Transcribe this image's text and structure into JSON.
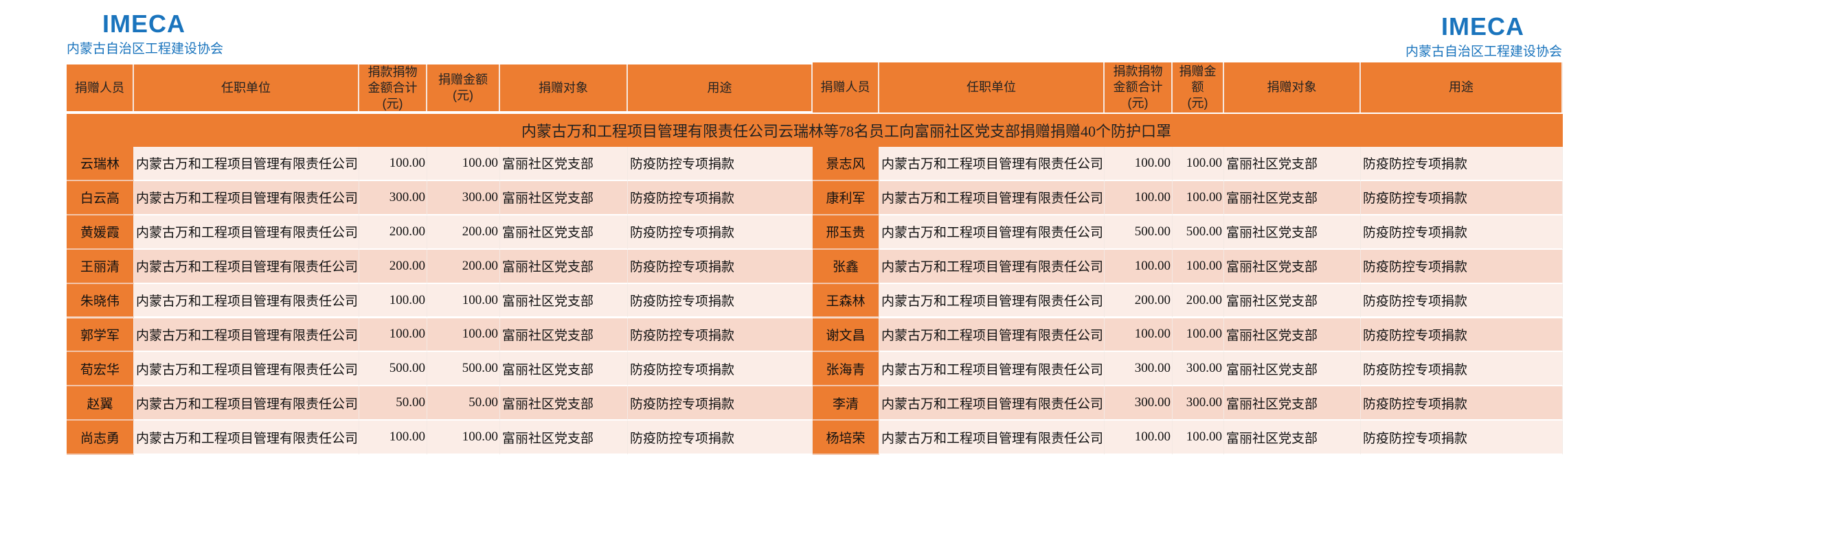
{
  "logo_left": {
    "brand": "IMECA",
    "org": "内蒙古自治区工程建设协会"
  },
  "logo_right": {
    "brand": "IMECA",
    "org": "内蒙古自治区工程建设协会"
  },
  "headers_left": [
    "捐赠人员",
    "任职单位",
    "捐款捐物\n金额合计\n(元)",
    "捐赠金额\n(元)",
    "捐赠对象",
    "用途"
  ],
  "headers_right": [
    "捐赠人员",
    "任职单位",
    "捐款捐物\n金额合计\n(元)",
    "捐赠金\n额\n(元)",
    "捐赠对象",
    "用途"
  ],
  "banner": "内蒙古万和工程项目管理有限责任公司云瑞林等78名员工向富丽社区党支部捐赠捐赠40个防护口罩",
  "colors": {
    "header": "#ed7d31",
    "row_light": "#fbede7",
    "row_dark": "#f7d8cb",
    "logo": "#1a74bd"
  },
  "rows_left": [
    {
      "name": "云瑞林",
      "unit": "内蒙古万和工程项目管理有限责任公司",
      "total": "100.00",
      "amount": "100.00",
      "target": "富丽社区党支部",
      "purpose": "防疫防控专项捐款"
    },
    {
      "name": "白云高",
      "unit": "内蒙古万和工程项目管理有限责任公司",
      "total": "300.00",
      "amount": "300.00",
      "target": "富丽社区党支部",
      "purpose": "防疫防控专项捐款"
    },
    {
      "name": "黄媛霞",
      "unit": "内蒙古万和工程项目管理有限责任公司",
      "total": "200.00",
      "amount": "200.00",
      "target": "富丽社区党支部",
      "purpose": "防疫防控专项捐款"
    },
    {
      "name": "王丽清",
      "unit": "内蒙古万和工程项目管理有限责任公司",
      "total": "200.00",
      "amount": "200.00",
      "target": "富丽社区党支部",
      "purpose": "防疫防控专项捐款"
    },
    {
      "name": "朱晓伟",
      "unit": "内蒙古万和工程项目管理有限责任公司",
      "total": "100.00",
      "amount": "100.00",
      "target": "富丽社区党支部",
      "purpose": "防疫防控专项捐款"
    },
    {
      "name": "郭学军",
      "unit": "内蒙古万和工程项目管理有限责任公司",
      "total": "100.00",
      "amount": "100.00",
      "target": "富丽社区党支部",
      "purpose": "防疫防控专项捐款"
    },
    {
      "name": "荀宏华",
      "unit": "内蒙古万和工程项目管理有限责任公司",
      "total": "500.00",
      "amount": "500.00",
      "target": "富丽社区党支部",
      "purpose": "防疫防控专项捐款"
    },
    {
      "name": "赵翼",
      "unit": "内蒙古万和工程项目管理有限责任公司",
      "total": "50.00",
      "amount": "50.00",
      "target": "富丽社区党支部",
      "purpose": "防疫防控专项捐款"
    },
    {
      "name": "尚志勇",
      "unit": "内蒙古万和工程项目管理有限责任公司",
      "total": "100.00",
      "amount": "100.00",
      "target": "富丽社区党支部",
      "purpose": "防疫防控专项捐款"
    }
  ],
  "rows_right": [
    {
      "name": "景志风",
      "unit": "内蒙古万和工程项目管理有限责任公司",
      "total": "100.00",
      "amount": "100.00",
      "target": "富丽社区党支部",
      "purpose": "防疫防控专项捐款"
    },
    {
      "name": "康利军",
      "unit": "内蒙古万和工程项目管理有限责任公司",
      "total": "100.00",
      "amount": "100.00",
      "target": "富丽社区党支部",
      "purpose": "防疫防控专项捐款"
    },
    {
      "name": "邢玉贵",
      "unit": "内蒙古万和工程项目管理有限责任公司",
      "total": "500.00",
      "amount": "500.00",
      "target": "富丽社区党支部",
      "purpose": "防疫防控专项捐款"
    },
    {
      "name": "张鑫",
      "unit": "内蒙古万和工程项目管理有限责任公司",
      "total": "100.00",
      "amount": "100.00",
      "target": "富丽社区党支部",
      "purpose": "防疫防控专项捐款"
    },
    {
      "name": "王森林",
      "unit": "内蒙古万和工程项目管理有限责任公司",
      "total": "200.00",
      "amount": "200.00",
      "target": "富丽社区党支部",
      "purpose": "防疫防控专项捐款"
    },
    {
      "name": "谢文昌",
      "unit": "内蒙古万和工程项目管理有限责任公司",
      "total": "100.00",
      "amount": "100.00",
      "target": "富丽社区党支部",
      "purpose": "防疫防控专项捐款"
    },
    {
      "name": "张海青",
      "unit": "内蒙古万和工程项目管理有限责任公司",
      "total": "300.00",
      "amount": "300.00",
      "target": "富丽社区党支部",
      "purpose": "防疫防控专项捐款"
    },
    {
      "name": "李清",
      "unit": "内蒙古万和工程项目管理有限责任公司",
      "total": "300.00",
      "amount": "300.00",
      "target": "富丽社区党支部",
      "purpose": "防疫防控专项捐款"
    },
    {
      "name": "杨培荣",
      "unit": "内蒙古万和工程项目管理有限责任公司",
      "total": "100.00",
      "amount": "100.00",
      "target": "富丽社区党支部",
      "purpose": "防疫防控专项捐款"
    }
  ]
}
